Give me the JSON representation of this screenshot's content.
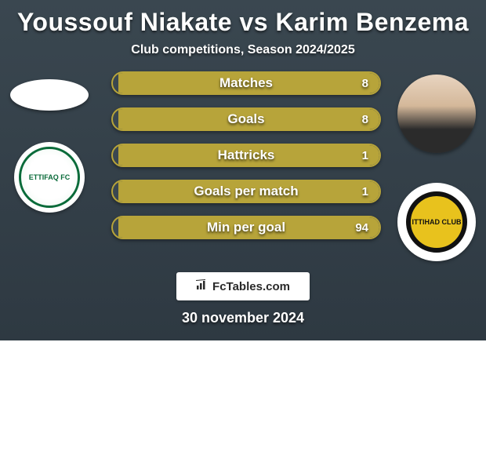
{
  "header": {
    "title": "Youssouf Niakate vs Karim Benzema",
    "subtitle": "Club competitions, Season 2024/2025"
  },
  "players": {
    "left": {
      "name": "Youssouf Niakate",
      "club_short": "ETTIFAQ FC"
    },
    "right": {
      "name": "Karim Benzema",
      "club_short": "ITTIHAD CLUB"
    }
  },
  "stats": [
    {
      "label": "Matches",
      "left_value": 0,
      "right_value": 8,
      "left_pct": 2,
      "right_pct": 98
    },
    {
      "label": "Goals",
      "left_value": 0,
      "right_value": 8,
      "left_pct": 2,
      "right_pct": 98
    },
    {
      "label": "Hattricks",
      "left_value": 0,
      "right_value": 1,
      "left_pct": 2,
      "right_pct": 98
    },
    {
      "label": "Goals per match",
      "left_value": 0,
      "right_value": 1,
      "left_pct": 2,
      "right_pct": 98
    },
    {
      "label": "Min per goal",
      "left_value": 0,
      "right_value": 94,
      "left_pct": 2,
      "right_pct": 98
    }
  ],
  "colors": {
    "bar_border": "#b7a43a",
    "fill_right": "#b7a43a",
    "fill_left": "#3a4750",
    "card_bg_top": "#3a4750",
    "card_bg_bot": "#2e3942"
  },
  "watermark": {
    "text": "FcTables.com"
  },
  "footer": {
    "date": "30 november 2024"
  }
}
